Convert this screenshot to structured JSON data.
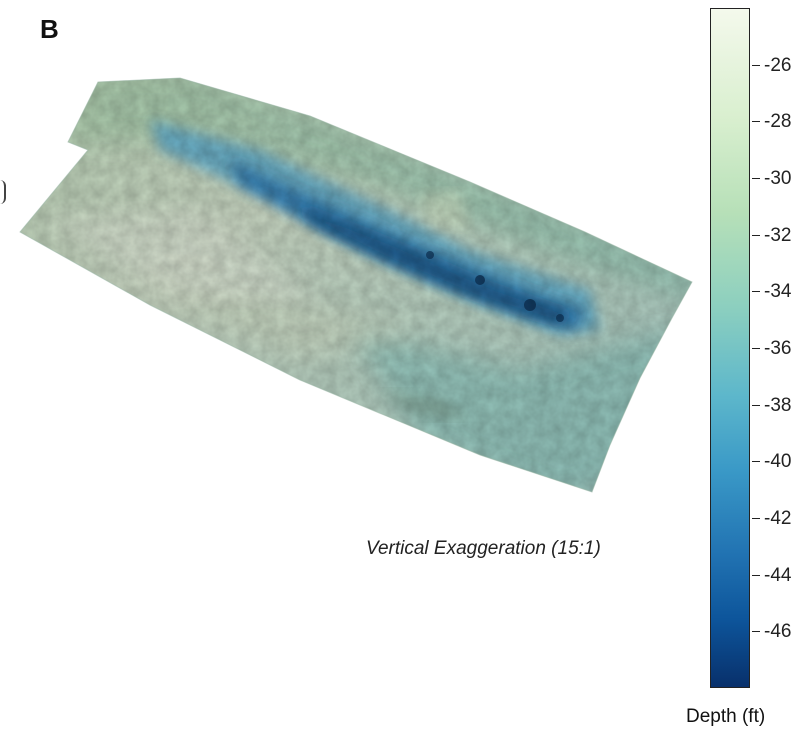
{
  "panel_label": "B",
  "annotation": "Vertical Exaggeration (15:1)",
  "colorbar": {
    "title": "Depth (ft)",
    "min": -48,
    "max": -24,
    "ticks": [
      "-26",
      "-28",
      "-30",
      "-32",
      "-34",
      "-36",
      "-38",
      "-40",
      "-42",
      "-44",
      "-46"
    ],
    "palette": [
      "#f4f9ec",
      "#b7e0b8",
      "#5db7cb",
      "#2274b3",
      "#08306b"
    ]
  }
}
